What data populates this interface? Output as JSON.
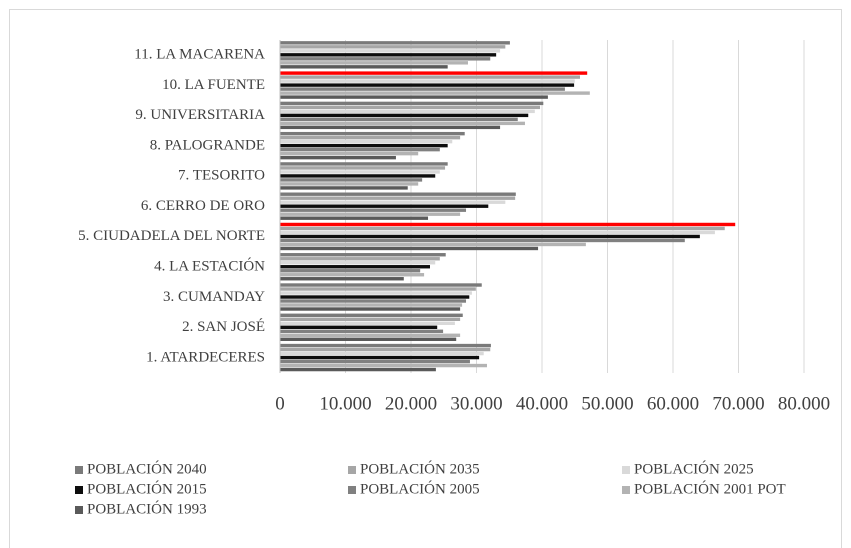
{
  "chart_data": {
    "type": "barh",
    "categories": [
      "1. ATARDECERES",
      "2. SAN JOSÉ",
      "3. CUMANDAY",
      "4. LA ESTACIÓN",
      "5. CIUDADELA DEL NORTE",
      "6. CERRO DE ORO",
      "7. TESORITO",
      "8. PALOGRANDE",
      "9. UNIVERSITARIA",
      "10. LA FUENTE",
      "11. LA MACARENA"
    ],
    "series": [
      {
        "name": "POBLACIÓN 2040",
        "color": "#7a7a7a",
        "colors": [
          "#7a7a7a",
          "#7a7a7a",
          "#7a7a7a",
          "#7a7a7a",
          "#ff0000",
          "#7a7a7a",
          "#7a7a7a",
          "#7a7a7a",
          "#7a7a7a",
          "#ff0000",
          "#7a7a7a"
        ],
        "values": [
          32200,
          27900,
          30800,
          25300,
          69500,
          36000,
          25600,
          28200,
          40200,
          46900,
          35100
        ]
      },
      {
        "name": "POBLACIÓN 2035",
        "color": "#a6a6a6",
        "values": [
          32100,
          27500,
          29900,
          24400,
          67900,
          35900,
          25200,
          27500,
          39700,
          45800,
          34400
        ]
      },
      {
        "name": "POBLACIÓN 2025",
        "color": "#d9d9d9",
        "values": [
          31100,
          26700,
          29300,
          23700,
          66400,
          34400,
          24400,
          26300,
          38900,
          45000,
          33600
        ]
      },
      {
        "name": "POBLACIÓN 2015",
        "color": "#0d0d0d",
        "values": [
          30400,
          24000,
          28900,
          22900,
          64100,
          31800,
          23700,
          25600,
          37900,
          44900,
          33000
        ]
      },
      {
        "name": "POBLACIÓN 2005",
        "color": "#808080",
        "values": [
          29000,
          24900,
          28400,
          21400,
          61800,
          28400,
          21700,
          24400,
          36300,
          43500,
          32100
        ]
      },
      {
        "name": "POBLACIÓN 2001 POT",
        "color": "#b3b3b3",
        "values": [
          31600,
          27500,
          27800,
          22000,
          46700,
          27500,
          21100,
          21100,
          37400,
          47300,
          28700
        ]
      },
      {
        "name": "POBLACIÓN 1993",
        "color": "#5a5a5a",
        "values": [
          23800,
          26900,
          27500,
          18900,
          39400,
          22600,
          19500,
          17700,
          33600,
          40900,
          25600
        ]
      }
    ],
    "xlim": [
      0,
      80000
    ],
    "xticks": [
      0,
      {
        "value": 10000,
        "label": "10.000"
      },
      {
        "value": 20000,
        "label": "20.000"
      },
      {
        "value": 30000,
        "label": "30.000"
      },
      {
        "value": 40000,
        "label": "40.000"
      },
      {
        "value": 50000,
        "label": "50.000"
      },
      {
        "value": 60000,
        "label": "60.000"
      },
      {
        "value": 70000,
        "label": "70.000"
      },
      {
        "value": 80000,
        "label": "80.000"
      }
    ],
    "grid": true
  }
}
